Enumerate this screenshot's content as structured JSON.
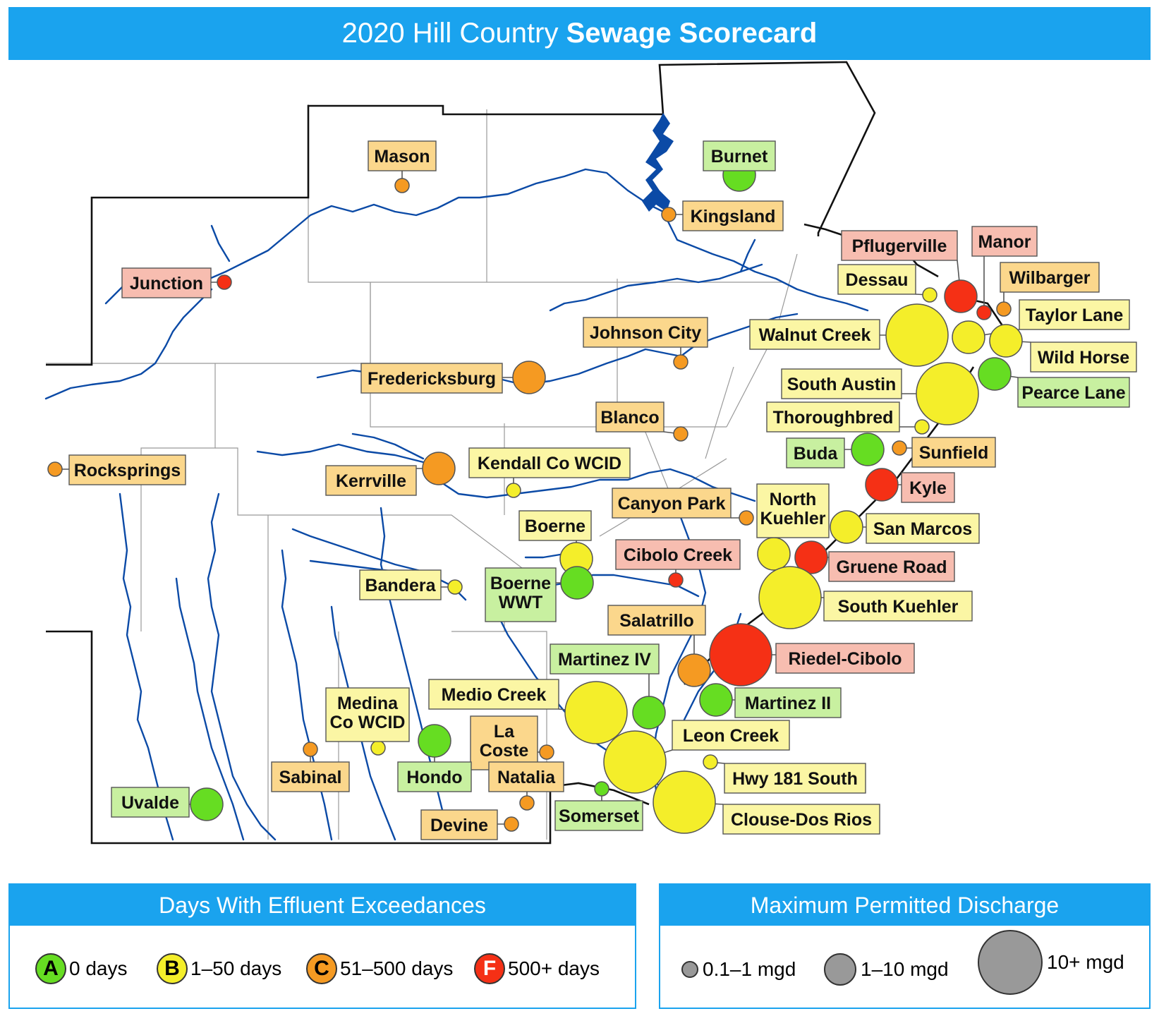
{
  "title": {
    "prefix": "2020 Hill Country ",
    "bold": "Sewage Scorecard"
  },
  "colors": {
    "A": "#66dd22",
    "B": "#f4ee2a",
    "C": "#f59a22",
    "F": "#f53015",
    "labelA": "#c8f0a0",
    "labelB": "#fbf6a4",
    "labelC": "#fbd78c",
    "labelF": "#f7bdb0",
    "water": "#0b4aa6",
    "accent": "#1aa3ee"
  },
  "facilities": [
    {
      "name": "Burnet",
      "grade": "A",
      "size": "medium"
    },
    {
      "name": "Mason",
      "grade": "C",
      "size": "small"
    },
    {
      "name": "Kingsland",
      "grade": "C",
      "size": "small"
    },
    {
      "name": "Junction",
      "grade": "F",
      "size": "small"
    },
    {
      "name": "Pflugerville",
      "grade": "F",
      "size": "medium"
    },
    {
      "name": "Manor",
      "grade": "F",
      "size": "small"
    },
    {
      "name": "Dessau",
      "grade": "B",
      "size": "small"
    },
    {
      "name": "Wilbarger",
      "grade": "C",
      "size": "small"
    },
    {
      "name": "Taylor Lane",
      "grade": "B",
      "size": "medium"
    },
    {
      "name": "Johnson City",
      "grade": "C",
      "size": "small"
    },
    {
      "name": "Walnut Creek",
      "grade": "B",
      "size": "large"
    },
    {
      "name": "Wild Horse",
      "grade": "B",
      "size": "medium"
    },
    {
      "name": "Fredericksburg",
      "grade": "C",
      "size": "medium"
    },
    {
      "name": "South Austin",
      "grade": "B",
      "size": "large"
    },
    {
      "name": "Pearce Lane",
      "grade": "A",
      "size": "medium"
    },
    {
      "name": "Thoroughbred",
      "grade": "B",
      "size": "small"
    },
    {
      "name": "Blanco",
      "grade": "C",
      "size": "small"
    },
    {
      "name": "Buda",
      "grade": "A",
      "size": "medium"
    },
    {
      "name": "Sunfield",
      "grade": "C",
      "size": "small"
    },
    {
      "name": "Rocksprings",
      "grade": "C",
      "size": "small"
    },
    {
      "name": "Kerrville",
      "grade": "C",
      "size": "medium"
    },
    {
      "name": "Kendall Co WCID",
      "grade": "B",
      "size": "small"
    },
    {
      "name": "Kyle",
      "grade": "F",
      "size": "medium"
    },
    {
      "name": "Canyon Park",
      "grade": "C",
      "size": "small"
    },
    {
      "name": "North Kuehler",
      "grade": "B",
      "size": "medium"
    },
    {
      "name": "San Marcos",
      "grade": "B",
      "size": "medium"
    },
    {
      "name": "Boerne",
      "grade": "B",
      "size": "medium"
    },
    {
      "name": "Cibolo Creek",
      "grade": "F",
      "size": "small"
    },
    {
      "name": "Gruene Road",
      "grade": "F",
      "size": "medium"
    },
    {
      "name": "Bandera",
      "grade": "B",
      "size": "small"
    },
    {
      "name": "Boerne WWT",
      "grade": "A",
      "size": "medium"
    },
    {
      "name": "South Kuehler",
      "grade": "B",
      "size": "large"
    },
    {
      "name": "Salatrillo",
      "grade": "C",
      "size": "medium"
    },
    {
      "name": "Riedel-Cibolo",
      "grade": "F",
      "size": "large"
    },
    {
      "name": "Martinez IV",
      "grade": "A",
      "size": "medium"
    },
    {
      "name": "Medio Creek",
      "grade": "B",
      "size": "large"
    },
    {
      "name": "Martinez II",
      "grade": "A",
      "size": "medium"
    },
    {
      "name": "Medina Co WCID",
      "grade": "B",
      "size": "small"
    },
    {
      "name": "Leon Creek",
      "grade": "B",
      "size": "large"
    },
    {
      "name": "La Coste",
      "grade": "C",
      "size": "small"
    },
    {
      "name": "Hondo",
      "grade": "A",
      "size": "medium"
    },
    {
      "name": "Sabinal",
      "grade": "C",
      "size": "small"
    },
    {
      "name": "Hwy 181 South",
      "grade": "B",
      "size": "small"
    },
    {
      "name": "Natalia",
      "grade": "C",
      "size": "small"
    },
    {
      "name": "Uvalde",
      "grade": "A",
      "size": "medium"
    },
    {
      "name": "Somerset",
      "grade": "A",
      "size": "small"
    },
    {
      "name": "Clouse-Dos Rios",
      "grade": "B",
      "size": "large"
    },
    {
      "name": "Devine",
      "grade": "C",
      "size": "small"
    }
  ],
  "legend_grades": {
    "title": "Days With Effluent Exceedances",
    "items": [
      {
        "letter": "A",
        "label": "0 days",
        "color": "#66dd22"
      },
      {
        "letter": "B",
        "label": "1–50 days",
        "color": "#f4ee2a"
      },
      {
        "letter": "C",
        "label": "51–500 days",
        "color": "#f59a22"
      },
      {
        "letter": "F",
        "label": "500+ days",
        "color": "#f53015"
      }
    ]
  },
  "legend_sizes": {
    "title": "Maximum Permitted Discharge",
    "items": [
      {
        "label": "0.1–1 mgd",
        "size": "small"
      },
      {
        "label": "1–10 mgd",
        "size": "medium"
      },
      {
        "label": "10+ mgd",
        "size": "large"
      }
    ]
  }
}
